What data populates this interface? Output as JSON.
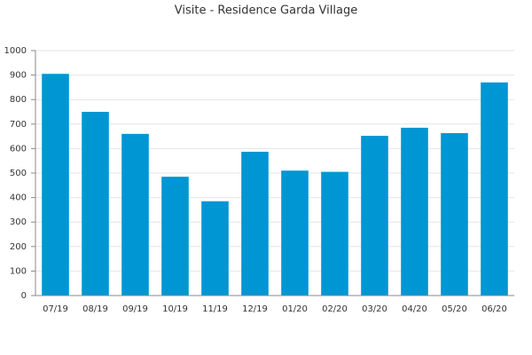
{
  "chart_data": {
    "type": "bar",
    "title": "Visite - Residence Garda Village",
    "categories": [
      "07/19",
      "08/19",
      "09/19",
      "10/19",
      "11/19",
      "12/19",
      "01/20",
      "02/20",
      "03/20",
      "04/20",
      "05/20",
      "06/20"
    ],
    "values": [
      905,
      750,
      660,
      485,
      385,
      587,
      510,
      505,
      652,
      685,
      663,
      870
    ],
    "color": "#0096d4",
    "ylim": [
      0,
      1000
    ],
    "yticks": [
      0,
      100,
      200,
      300,
      400,
      500,
      600,
      700,
      800,
      900,
      1000
    ],
    "grid": true
  }
}
